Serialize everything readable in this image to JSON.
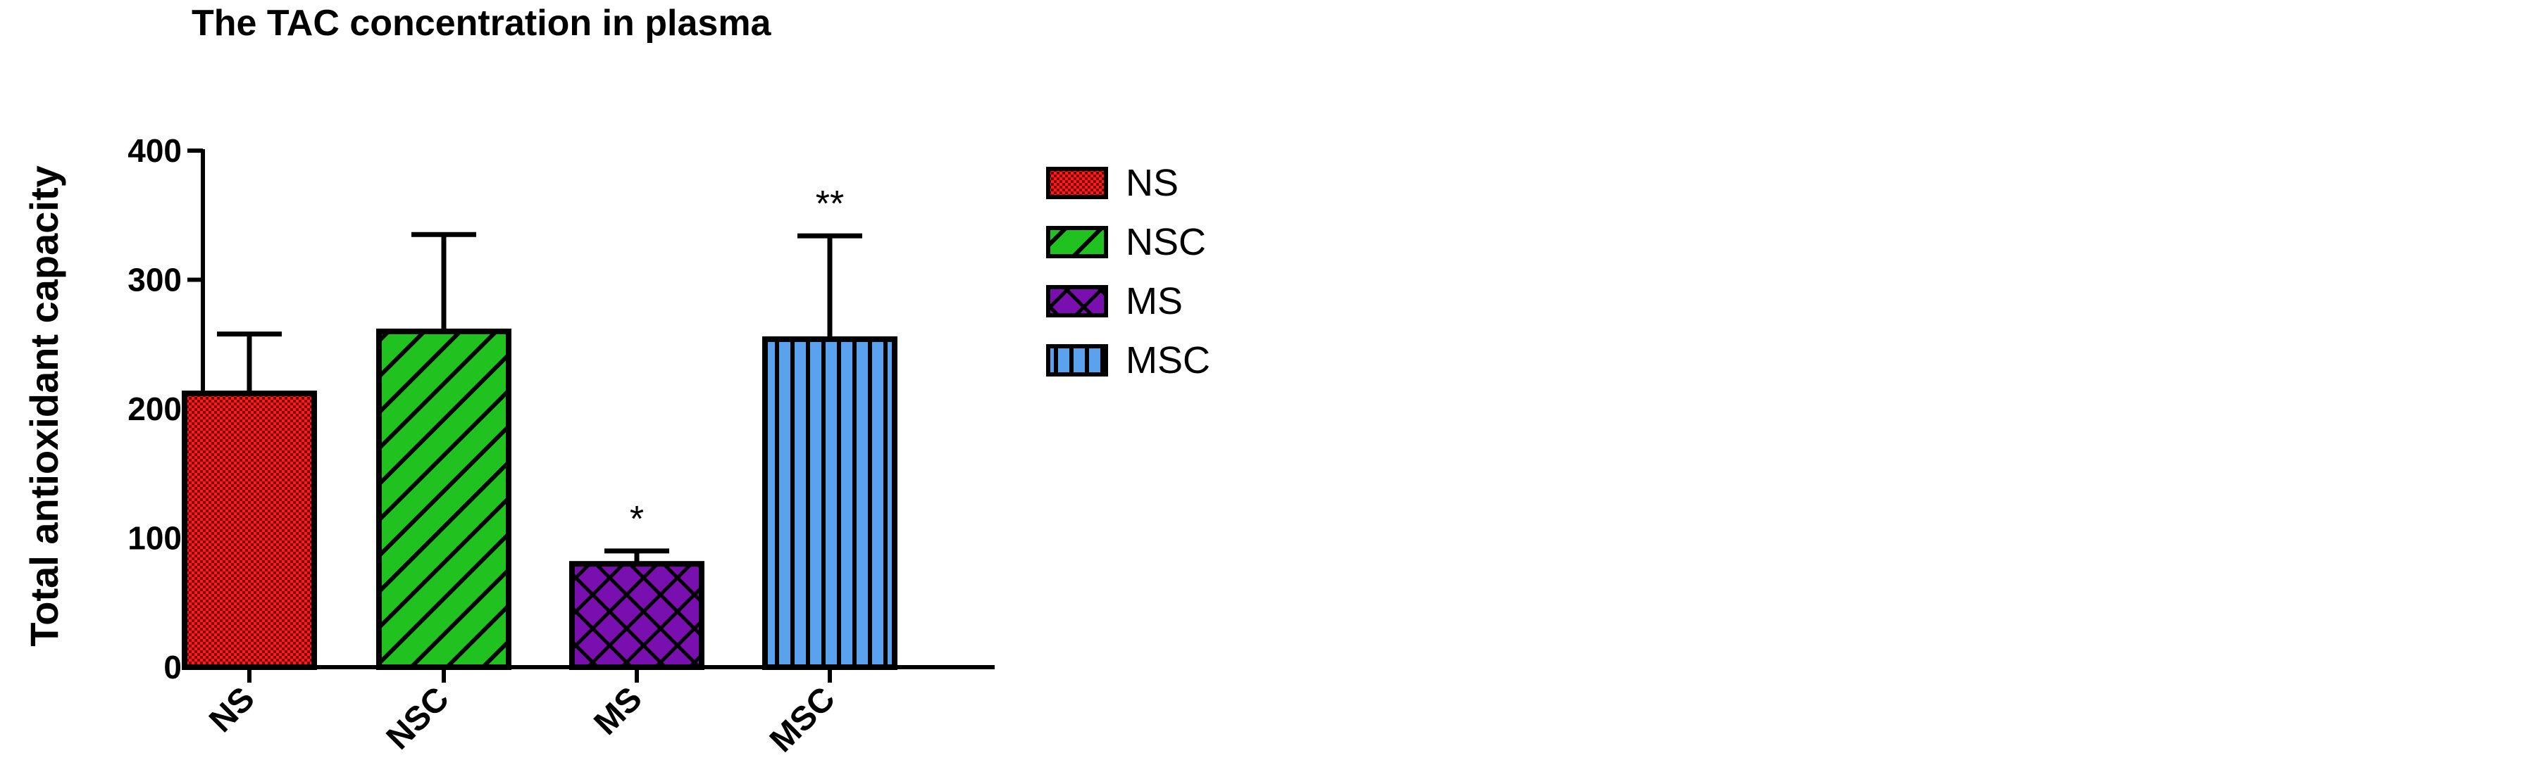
{
  "chart_data": {
    "type": "bar",
    "title": "The TAC concentration in plasma",
    "ylabel": "Total antioxidant capacity",
    "xlabel": "",
    "ylim": [
      0,
      400
    ],
    "yticks": [
      0,
      100,
      200,
      300,
      400
    ],
    "categories": [
      "NS",
      "NSC",
      "MS",
      "MSC"
    ],
    "values": [
      212,
      260,
      80,
      254
    ],
    "error_upper": [
      258,
      335,
      90,
      334
    ],
    "annotations": [
      "",
      "",
      "*",
      "**"
    ],
    "colors": [
      "#ff1a1a",
      "#1fc21f",
      "#7a0fb0",
      "#5aa2ee"
    ],
    "patterns": [
      "checker",
      "diagonal",
      "crosshatch",
      "vertical"
    ],
    "legend": {
      "position": "right",
      "entries": [
        "NS",
        "NSC",
        "MS",
        "MSC"
      ]
    }
  }
}
